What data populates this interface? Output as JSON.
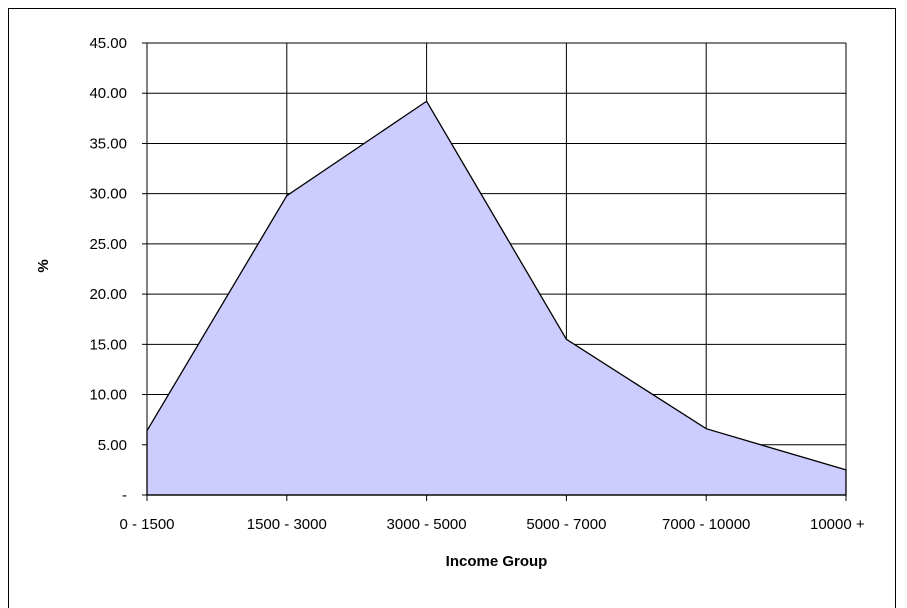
{
  "chart_data": {
    "type": "area",
    "title": "",
    "xlabel": "Income Group",
    "ylabel": "%",
    "categories": [
      "0 - 1500",
      "1500 - 3000",
      "3000 - 5000",
      "5000 - 7000",
      "7000 - 10000",
      "10000 +"
    ],
    "values": [
      6.4,
      29.8,
      39.2,
      15.5,
      6.6,
      2.5
    ],
    "ylim": [
      0,
      45
    ],
    "y_ticks": [
      0,
      5,
      10,
      15,
      20,
      25,
      30,
      35,
      40,
      45
    ],
    "y_tick_labels": [
      "-",
      "5.00",
      "10.00",
      "15.00",
      "20.00",
      "25.00",
      "30.00",
      "35.00",
      "40.00",
      "45.00"
    ],
    "grid": true,
    "legend": "none",
    "colors": {
      "fill": "#ccccff",
      "line": "#000000",
      "grid": "#000000"
    }
  }
}
